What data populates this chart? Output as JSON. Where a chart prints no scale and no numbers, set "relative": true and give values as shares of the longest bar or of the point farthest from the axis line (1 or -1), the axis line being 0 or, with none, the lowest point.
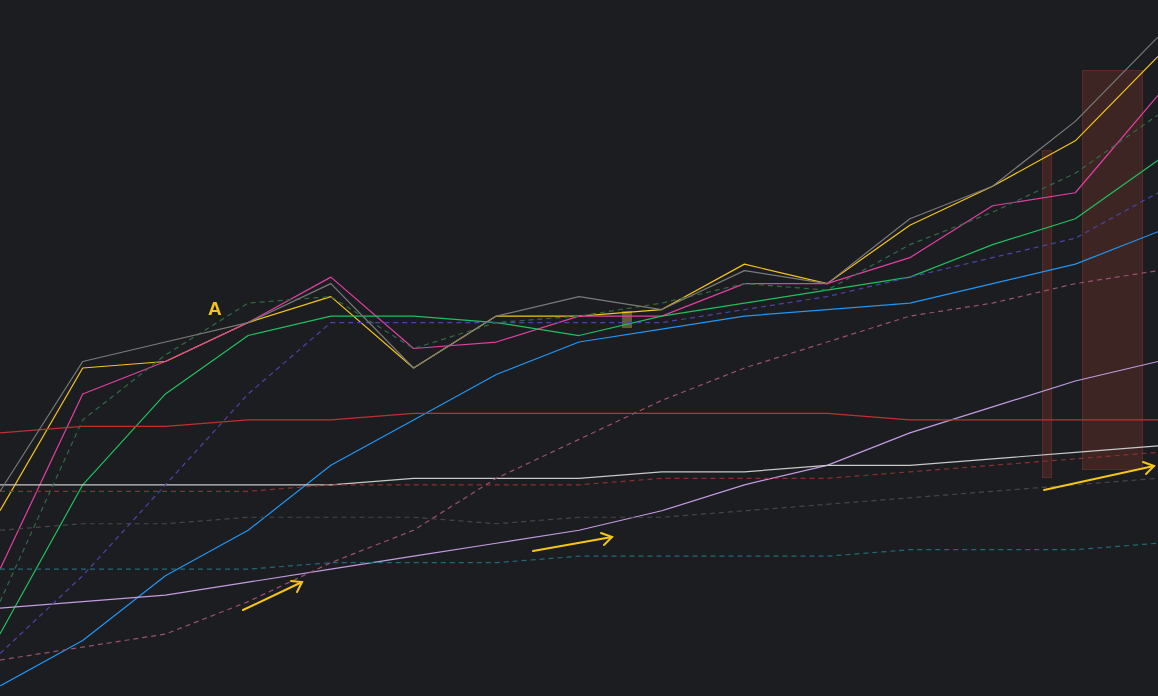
{
  "chart_data": {
    "type": "line",
    "relative": true,
    "categories": [
      null,
      null,
      null,
      null,
      null,
      null,
      null,
      null,
      null,
      null,
      null,
      null,
      null,
      null,
      null
    ],
    "grid": false,
    "legend": false,
    "marker": "none",
    "series": [
      {
        "color": "#7a7a7a",
        "values": [
          0.3,
          0.5,
          0.53,
          0.56,
          0.62,
          0.49,
          0.57,
          0.6,
          0.58,
          0.64,
          0.62,
          0.72,
          0.77,
          0.87,
          1.0
        ]
      },
      {
        "color": "#2f6b45",
        "line_style": "dashed",
        "values": [
          0.13,
          0.41,
          0.51,
          0.59,
          0.6,
          0.52,
          0.56,
          0.57,
          0.59,
          0.62,
          0.61,
          0.68,
          0.73,
          0.79,
          0.88
        ]
      },
      {
        "color": "#4a44a8",
        "line_style": "dashed",
        "values": [
          0.05,
          0.17,
          0.31,
          0.45,
          0.56,
          0.56,
          0.56,
          0.56,
          0.56,
          0.58,
          0.6,
          0.63,
          0.66,
          0.69,
          0.76
        ]
      },
      {
        "color": "#9a5070",
        "line_style": "dashed",
        "values": [
          0.04,
          0.06,
          0.08,
          0.13,
          0.19,
          0.24,
          0.32,
          0.38,
          0.44,
          0.49,
          0.53,
          0.57,
          0.59,
          0.62,
          0.64
        ]
      },
      {
        "color": "#8a2f30",
        "line_style": "dashed",
        "values": [
          0.3,
          0.3,
          0.3,
          0.3,
          0.31,
          0.31,
          0.31,
          0.31,
          0.32,
          0.32,
          0.32,
          0.33,
          0.34,
          0.35,
          0.36
        ]
      },
      {
        "color": "#4a4448",
        "line_style": "dashed",
        "values": [
          0.24,
          0.25,
          0.25,
          0.26,
          0.26,
          0.26,
          0.25,
          0.26,
          0.26,
          0.27,
          0.28,
          0.29,
          0.3,
          0.31,
          0.32
        ]
      },
      {
        "color": "#1f6a78",
        "line_style": "dashed",
        "values": [
          0.18,
          0.18,
          0.18,
          0.18,
          0.19,
          0.19,
          0.19,
          0.2,
          0.2,
          0.2,
          0.2,
          0.21,
          0.21,
          0.21,
          0.22
        ]
      },
      {
        "color": "#c03030",
        "values": [
          0.39,
          0.4,
          0.4,
          0.41,
          0.41,
          0.42,
          0.42,
          0.42,
          0.42,
          0.42,
          0.42,
          0.41,
          0.41,
          0.41,
          0.41
        ]
      },
      {
        "color": "#c8c8c8",
        "values": [
          0.31,
          0.31,
          0.31,
          0.31,
          0.31,
          0.32,
          0.32,
          0.32,
          0.33,
          0.33,
          0.34,
          0.34,
          0.35,
          0.36,
          0.37
        ]
      },
      {
        "color": "#c39be0",
        "values": [
          0.12,
          0.13,
          0.14,
          0.16,
          0.18,
          0.2,
          0.22,
          0.24,
          0.27,
          0.31,
          0.34,
          0.39,
          0.43,
          0.47,
          0.5
        ]
      },
      {
        "color": "#2196f3",
        "values": [
          0,
          0.07,
          0.17,
          0.24,
          0.34,
          0.41,
          0.48,
          0.53,
          0.55,
          0.57,
          0.58,
          0.59,
          0.62,
          0.65,
          0.7
        ]
      },
      {
        "color": "#20c060",
        "values": [
          0.08,
          0.31,
          0.45,
          0.54,
          0.57,
          0.57,
          0.56,
          0.54,
          0.57,
          0.59,
          0.61,
          0.63,
          0.68,
          0.72,
          0.81
        ]
      },
      {
        "color": "#e040a0",
        "values": [
          0.18,
          0.45,
          0.5,
          0.56,
          0.63,
          0.52,
          0.53,
          0.57,
          0.57,
          0.62,
          0.62,
          0.66,
          0.74,
          0.76,
          0.91
        ]
      },
      {
        "color": "#f5c518",
        "values": [
          0.27,
          0.49,
          0.5,
          0.56,
          0.6,
          0.49,
          0.57,
          0.57,
          0.58,
          0.65,
          0.62,
          0.71,
          0.77,
          0.84,
          0.97
        ]
      }
    ],
    "annotations": [
      "A"
    ]
  }
}
